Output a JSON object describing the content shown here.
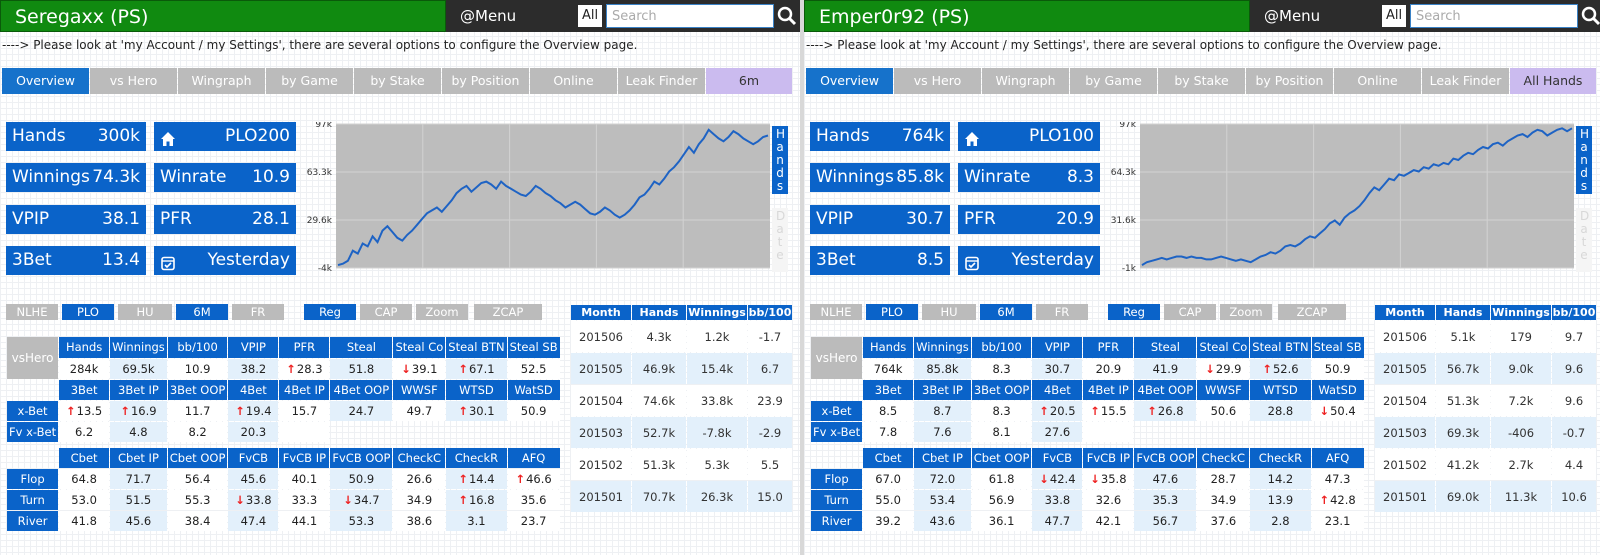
{
  "panels": [
    {
      "title": "Seregaxx (PS)",
      "menu_label": "@Menu",
      "all_label": "All",
      "search_placeholder": "Search",
      "notice": "----> Please look at 'my Account / my Settings', there are several options to configure the Overview page.",
      "tabs": [
        "Overview",
        "vs Hero",
        "Wingraph",
        "by Game",
        "by Stake",
        "by Position",
        "Online",
        "Leak Finder",
        "6m"
      ],
      "stats": {
        "hands_label": "Hands",
        "hands_value": "300k",
        "stake_icon": "home-icon",
        "stake_value": "PLO200",
        "winnings_label": "Winnings",
        "winnings_value": "74.3k",
        "winrate_label": "Winrate",
        "winrate_value": "10.9",
        "vpip_label": "VPIP",
        "vpip_value": "38.1",
        "pfr_label": "PFR",
        "pfr_value": "28.1",
        "threebet_label": "3Bet",
        "threebet_value": "13.4",
        "last_icon": "calendar-check-icon",
        "last_value": "Yesterday"
      },
      "chart_y_ticks": [
        "97k",
        "63.3k",
        "29.6k",
        "-4k"
      ],
      "hands_tab": "Hands",
      "date_tab": "Date",
      "filters": [
        "NLHE",
        "PLO",
        "HU",
        "6M",
        "FR",
        "Reg",
        "CAP",
        "Zoom",
        "ZCAP"
      ],
      "vshero_label": "vsHero",
      "t1_headers": [
        "Hands",
        "Winnings",
        "bb/100",
        "VPIP",
        "PFR",
        "Steal",
        "Steal Co",
        "Steal BTN",
        "Steal SB"
      ],
      "t1_values": [
        "284k",
        "69.5k",
        "10.9",
        "38.2",
        "28.3",
        "51.8",
        "39.1",
        "67.1",
        "52.5"
      ],
      "t2_headers": [
        "3Bet",
        "3Bet IP",
        "3Bet OOP",
        "4Bet",
        "4Bet IP",
        "4Bet OOP",
        "WWSF",
        "WTSD",
        "WatSD"
      ],
      "xbet_label": "x-Bet",
      "t2_values": [
        "13.5",
        "16.9",
        "11.7",
        "19.4",
        "15.7",
        "24.7",
        "49.7",
        "30.1",
        "50.9"
      ],
      "fvxbet_label": "Fv x-Bet",
      "fvxbet_values": [
        "6.2",
        "4.8",
        "8.2",
        "20.3"
      ],
      "t3_headers": [
        "Cbet",
        "Cbet IP",
        "Cbet OOP",
        "FvCB",
        "FvCB IP",
        "FvCB OOP",
        "CheckC",
        "CheckR",
        "AFQ"
      ],
      "flop_label": "Flop",
      "flop_values": [
        "64.8",
        "71.7",
        "56.4",
        "45.6",
        "40.1",
        "50.9",
        "26.6",
        "14.4",
        "46.6"
      ],
      "turn_label": "Turn",
      "turn_values": [
        "53.0",
        "51.5",
        "55.3",
        "33.8",
        "33.3",
        "34.7",
        "34.9",
        "16.8",
        "35.6"
      ],
      "river_label": "River",
      "river_values": [
        "41.8",
        "45.6",
        "38.4",
        "47.4",
        "44.1",
        "53.3",
        "38.6",
        "3.1",
        "23.7"
      ],
      "arrows": {
        "t1_values": [
          "",
          "",
          "",
          "",
          "up",
          "",
          "down",
          "up",
          ""
        ],
        "t2_values": [
          "up",
          "up",
          "",
          "up",
          "",
          "",
          "",
          "up",
          ""
        ],
        "fvxbet_values": [
          "",
          "",
          "",
          ""
        ],
        "flop_values": [
          "",
          "",
          "",
          "",
          "",
          "",
          "",
          "up",
          "up"
        ],
        "turn_values": [
          "",
          "",
          "",
          "down",
          "",
          "down",
          "",
          "up",
          ""
        ],
        "river_values": [
          "",
          "",
          "",
          "",
          "",
          "",
          "",
          "",
          ""
        ]
      },
      "monthly_headers": [
        "Month",
        "Hands",
        "Winnings",
        "bb/100"
      ],
      "monthly_rows": [
        [
          "201506",
          "4.3k",
          "1.2k",
          "-1.7"
        ],
        [
          "201505",
          "46.9k",
          "15.4k",
          "6.7"
        ],
        [
          "201504",
          "74.6k",
          "33.8k",
          "23.9"
        ],
        [
          "201503",
          "52.7k",
          "-7.8k",
          "-2.9"
        ],
        [
          "201502",
          "51.3k",
          "5.3k",
          "5.5"
        ],
        [
          "201501",
          "70.7k",
          "26.3k",
          "15.0"
        ]
      ]
    },
    {
      "title": "Emper0r92 (PS)",
      "menu_label": "@Menu",
      "all_label": "All",
      "search_placeholder": "Search",
      "notice": "----> Please look at 'my Account / my Settings', there are several options to configure the Overview page.",
      "tabs": [
        "Overview",
        "vs Hero",
        "Wingraph",
        "by Game",
        "by Stake",
        "by Position",
        "Online",
        "Leak Finder",
        "All Hands"
      ],
      "stats": {
        "hands_label": "Hands",
        "hands_value": "764k",
        "stake_icon": "home-icon",
        "stake_value": "PLO100",
        "winnings_label": "Winnings",
        "winnings_value": "85.8k",
        "winrate_label": "Winrate",
        "winrate_value": "8.3",
        "vpip_label": "VPIP",
        "vpip_value": "30.7",
        "pfr_label": "PFR",
        "pfr_value": "20.9",
        "threebet_label": "3Bet",
        "threebet_value": "8.5",
        "last_icon": "calendar-check-icon",
        "last_value": "Yesterday"
      },
      "chart_y_ticks": [
        "97k",
        "64.3k",
        "31.6k",
        "-1k"
      ],
      "hands_tab": "Hands",
      "date_tab": "Date",
      "filters": [
        "NLHE",
        "PLO",
        "HU",
        "6M",
        "FR",
        "Reg",
        "CAP",
        "Zoom",
        "ZCAP"
      ],
      "vshero_label": "vsHero",
      "t1_headers": [
        "Hands",
        "Winnings",
        "bb/100",
        "VPIP",
        "PFR",
        "Steal",
        "Steal Co",
        "Steal BTN",
        "Steal SB"
      ],
      "t1_values": [
        "764k",
        "85.8k",
        "8.3",
        "30.7",
        "20.9",
        "41.9",
        "29.9",
        "52.6",
        "50.9"
      ],
      "t2_headers": [
        "3Bet",
        "3Bet IP",
        "3Bet OOP",
        "4Bet",
        "4Bet IP",
        "4Bet OOP",
        "WWSF",
        "WTSD",
        "WatSD"
      ],
      "xbet_label": "x-Bet",
      "t2_values": [
        "8.5",
        "8.7",
        "8.3",
        "20.5",
        "15.5",
        "26.8",
        "50.6",
        "28.8",
        "50.4"
      ],
      "fvxbet_label": "Fv x-Bet",
      "fvxbet_values": [
        "7.8",
        "7.6",
        "8.1",
        "27.6"
      ],
      "t3_headers": [
        "Cbet",
        "Cbet IP",
        "Cbet OOP",
        "FvCB",
        "FvCB IP",
        "FvCB OOP",
        "CheckC",
        "CheckR",
        "AFQ"
      ],
      "flop_label": "Flop",
      "flop_values": [
        "67.0",
        "72.0",
        "61.8",
        "42.4",
        "35.8",
        "47.6",
        "28.7",
        "14.2",
        "47.3"
      ],
      "turn_label": "Turn",
      "turn_values": [
        "55.0",
        "53.4",
        "56.9",
        "33.8",
        "32.6",
        "35.3",
        "34.9",
        "13.9",
        "42.8"
      ],
      "river_label": "River",
      "river_values": [
        "39.2",
        "43.6",
        "36.1",
        "47.7",
        "42.1",
        "56.7",
        "37.6",
        "2.8",
        "23.1"
      ],
      "arrows": {
        "t1_values": [
          "",
          "",
          "",
          "",
          "",
          "",
          "down",
          "up",
          ""
        ],
        "t2_values": [
          "",
          "",
          "",
          "up",
          "up",
          "up",
          "",
          "",
          "down"
        ],
        "fvxbet_values": [
          "",
          "",
          "",
          ""
        ],
        "flop_values": [
          "",
          "",
          "",
          "down",
          "down",
          "",
          "",
          "",
          ""
        ],
        "turn_values": [
          "",
          "",
          "",
          "",
          "",
          "",
          "",
          "",
          "up"
        ],
        "river_values": [
          "",
          "",
          "",
          "",
          "",
          "",
          "",
          "",
          ""
        ]
      },
      "monthly_headers": [
        "Month",
        "Hands",
        "Winnings",
        "bb/100"
      ],
      "monthly_rows": [
        [
          "201506",
          "5.1k",
          "179",
          "9.7"
        ],
        [
          "201505",
          "56.7k",
          "9.0k",
          "9.6"
        ],
        [
          "201504",
          "51.3k",
          "7.2k",
          "9.6"
        ],
        [
          "201503",
          "69.3k",
          "-406",
          "-0.7"
        ],
        [
          "201502",
          "41.2k",
          "2.7k",
          "4.4"
        ],
        [
          "201501",
          "69.0k",
          "11.3k",
          "10.6"
        ]
      ]
    }
  ],
  "colors": {
    "title_bg": "#108a10",
    "accent": "#0a63c9",
    "tab_inactive": "#bbbbbb",
    "tab_period": "#cbbbef",
    "arrow": "#ee2222",
    "line": "#1e63c4"
  }
}
